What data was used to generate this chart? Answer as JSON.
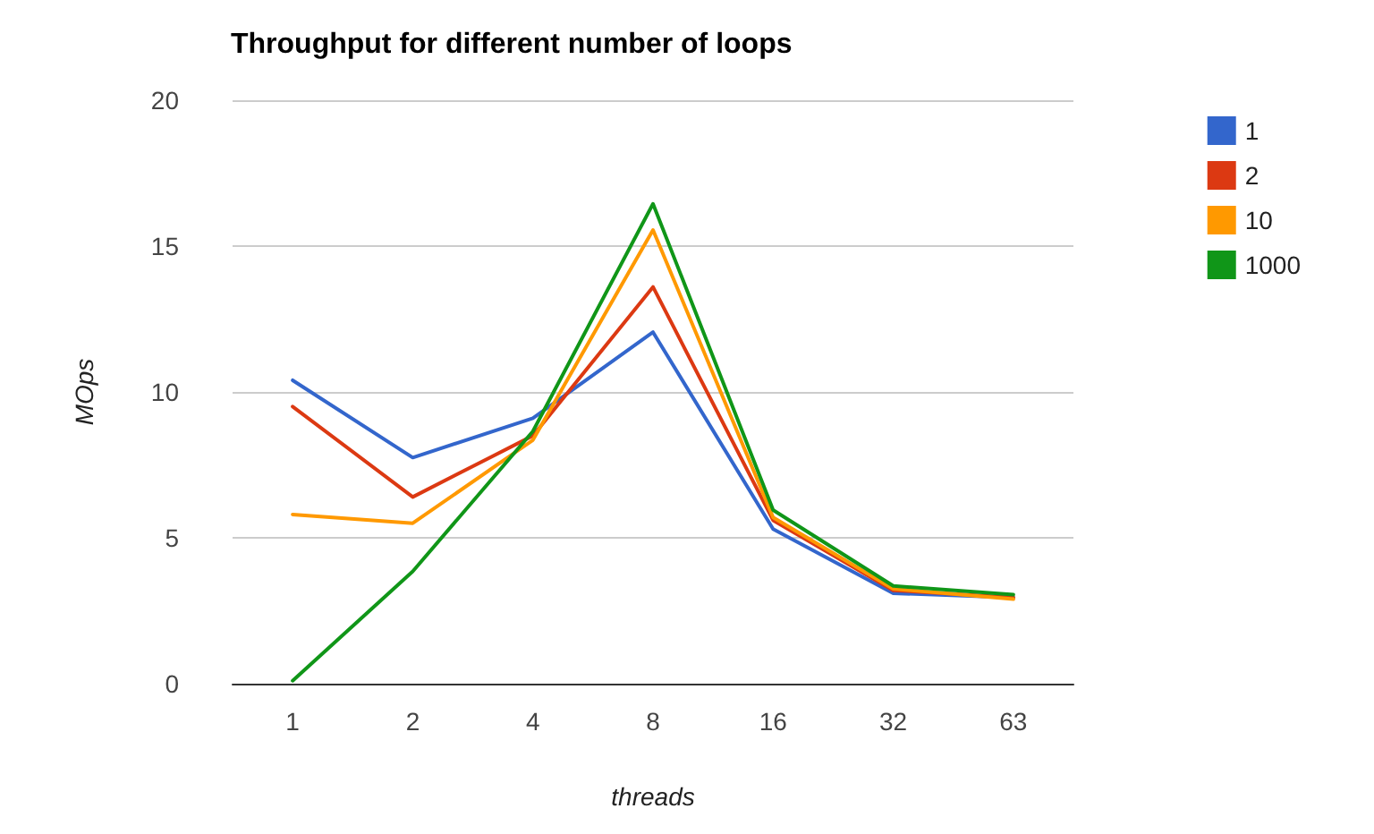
{
  "chart_data": {
    "type": "line",
    "title": "Throughput for different number of loops",
    "xlabel": "threads",
    "ylabel": "MOps",
    "categories": [
      "1",
      "2",
      "4",
      "8",
      "16",
      "32",
      "63"
    ],
    "series": [
      {
        "name": "1",
        "color": "#3366cc",
        "values": [
          10.4,
          7.75,
          9.1,
          12.05,
          5.3,
          3.1,
          2.95
        ]
      },
      {
        "name": "2",
        "color": "#dc3912",
        "values": [
          9.5,
          6.4,
          8.5,
          13.6,
          5.6,
          3.2,
          2.95
        ]
      },
      {
        "name": "10",
        "color": "#ff9900",
        "values": [
          5.8,
          5.5,
          8.35,
          15.55,
          5.7,
          3.25,
          2.9
        ]
      },
      {
        "name": "1000",
        "color": "#109618",
        "values": [
          0.1,
          3.85,
          8.65,
          16.45,
          5.95,
          3.35,
          3.05
        ]
      }
    ],
    "ylim": [
      0,
      20
    ],
    "yticks": [
      0,
      5,
      10,
      15,
      20
    ],
    "grid": "y",
    "legend": "right",
    "marker": "none",
    "line_style": "solid"
  }
}
